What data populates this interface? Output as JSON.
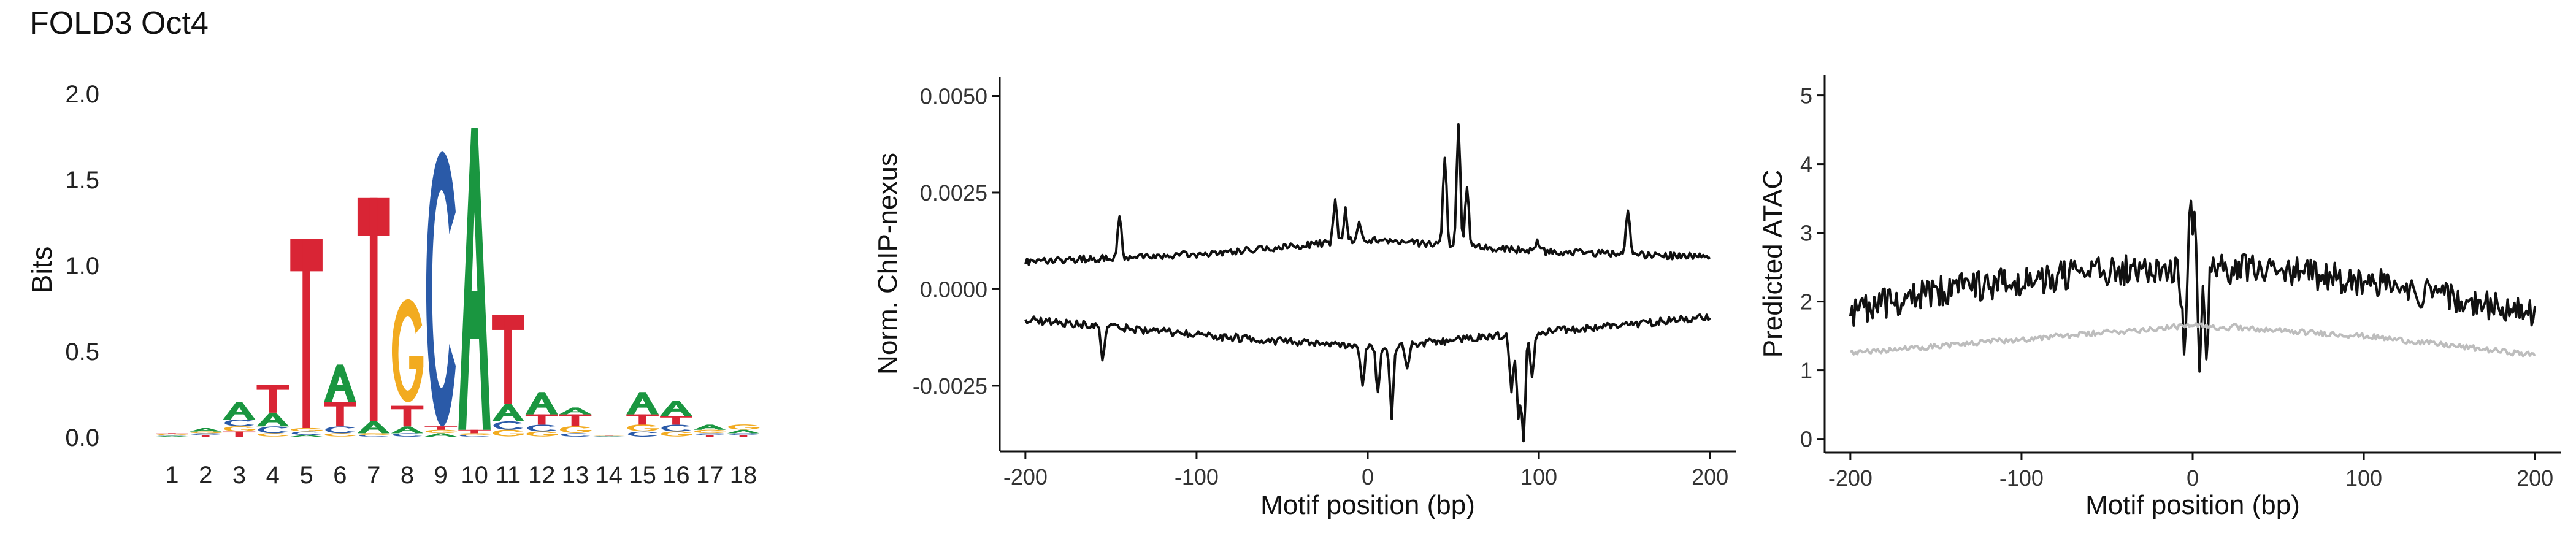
{
  "title": "FOLD3 Oct4",
  "colors": {
    "A": "#1a9640",
    "C": "#2a5aa8",
    "G": "#f2ab20",
    "T": "#d92535",
    "trace": "#111111",
    "control": "#bdbdbd"
  },
  "chart_data": [
    {
      "type": "sequence-logo",
      "ylabel": "Bits",
      "ylim": [
        0,
        2.0
      ],
      "yticks": [
        "0.0",
        "0.5",
        "1.0",
        "1.5",
        "2.0"
      ],
      "positions": [
        "1",
        "2",
        "3",
        "4",
        "5",
        "6",
        "7",
        "8",
        "9",
        "10",
        "11",
        "12",
        "13",
        "14",
        "15",
        "16",
        "17",
        "18"
      ],
      "stacks": [
        [
          [
            "A",
            0.005
          ],
          [
            "C",
            0.005
          ],
          [
            "G",
            0.005
          ],
          [
            "T",
            0.005
          ]
        ],
        [
          [
            "T",
            0.01
          ],
          [
            "C",
            0.01
          ],
          [
            "G",
            0.01
          ],
          [
            "A",
            0.02
          ]
        ],
        [
          [
            "T",
            0.03
          ],
          [
            "G",
            0.03
          ],
          [
            "C",
            0.04
          ],
          [
            "A",
            0.1
          ]
        ],
        [
          [
            "G",
            0.02
          ],
          [
            "C",
            0.04
          ],
          [
            "A",
            0.08
          ],
          [
            "T",
            0.16
          ]
        ],
        [
          [
            "A",
            0.01
          ],
          [
            "C",
            0.02
          ],
          [
            "G",
            0.02
          ],
          [
            "T",
            1.1
          ]
        ],
        [
          [
            "G",
            0.02
          ],
          [
            "C",
            0.04
          ],
          [
            "T",
            0.14
          ],
          [
            "A",
            0.22
          ]
        ],
        [
          [
            "C",
            0.01
          ],
          [
            "G",
            0.01
          ],
          [
            "A",
            0.07
          ],
          [
            "T",
            1.3
          ]
        ],
        [
          [
            "C",
            0.02
          ],
          [
            "A",
            0.04
          ],
          [
            "T",
            0.12
          ],
          [
            "G",
            0.6
          ]
        ],
        [
          [
            "A",
            0.02
          ],
          [
            "G",
            0.02
          ],
          [
            "T",
            0.02
          ],
          [
            "C",
            1.6
          ]
        ],
        [
          [
            "C",
            0.01
          ],
          [
            "G",
            0.01
          ],
          [
            "T",
            0.02
          ],
          [
            "A",
            1.76
          ]
        ],
        [
          [
            "G",
            0.04
          ],
          [
            "C",
            0.05
          ],
          [
            "A",
            0.1
          ],
          [
            "T",
            0.52
          ]
        ],
        [
          [
            "G",
            0.03
          ],
          [
            "C",
            0.04
          ],
          [
            "T",
            0.06
          ],
          [
            "A",
            0.13
          ]
        ],
        [
          [
            "C",
            0.02
          ],
          [
            "G",
            0.04
          ],
          [
            "T",
            0.07
          ],
          [
            "A",
            0.04
          ]
        ],
        [
          [
            "A",
            0.002
          ],
          [
            "C",
            0.002
          ],
          [
            "G",
            0.002
          ],
          [
            "T",
            0.002
          ]
        ],
        [
          [
            "C",
            0.03
          ],
          [
            "G",
            0.04
          ],
          [
            "T",
            0.06
          ],
          [
            "A",
            0.13
          ]
        ],
        [
          [
            "G",
            0.03
          ],
          [
            "C",
            0.04
          ],
          [
            "T",
            0.05
          ],
          [
            "A",
            0.09
          ]
        ],
        [
          [
            "T",
            0.01
          ],
          [
            "C",
            0.01
          ],
          [
            "G",
            0.02
          ],
          [
            "A",
            0.03
          ]
        ],
        [
          [
            "T",
            0.01
          ],
          [
            "C",
            0.01
          ],
          [
            "A",
            0.02
          ],
          [
            "G",
            0.03
          ]
        ]
      ]
    },
    {
      "type": "line",
      "xlabel": "Motif position (bp)",
      "ylabel": "Norm. ChIP-nexus",
      "xlim": [
        -215,
        215
      ],
      "ylim": [
        -0.0042,
        0.0055
      ],
      "xticks": [
        -200,
        -100,
        0,
        100,
        200
      ],
      "xtick_labels": [
        "-200",
        "-100",
        "0",
        "100",
        "200"
      ],
      "yticks": [
        -0.0025,
        0,
        0.0025,
        0.005
      ],
      "ytick_labels": [
        "-0.0025",
        "0.0000",
        "0.0025",
        "0.0050"
      ],
      "series": [
        {
          "x_start": -200,
          "x_step": 1,
          "baseline": [
            [
              -200,
              0.00072
            ],
            [
              -100,
              0.0009
            ],
            [
              0,
              0.00128
            ],
            [
              100,
              0.00098
            ],
            [
              200,
              0.00083
            ]
          ],
          "peaks": [
            [
              -145,
              0.0011
            ],
            [
              -19,
              0.0012
            ],
            [
              -13,
              0.0008
            ],
            [
              -5,
              0.0004
            ],
            [
              45,
              0.0023
            ],
            [
              53,
              0.0031
            ],
            [
              58,
              0.0015
            ],
            [
              99,
              0.0003
            ],
            [
              152,
              0.0012
            ]
          ],
          "noise": 9e-05
        },
        {
          "x_start": -200,
          "x_step": 1,
          "baseline": [
            [
              -200,
              -0.00078
            ],
            [
              -100,
              -0.00118
            ],
            [
              0,
              -0.00152
            ],
            [
              100,
              -0.00112
            ],
            [
              200,
              -0.00072
            ]
          ],
          "peaks": [
            [
              -155,
              -0.0009
            ],
            [
              -3,
              -0.0009
            ],
            [
              6,
              -0.0012
            ],
            [
              14,
              -0.0018
            ],
            [
              23,
              -0.0006
            ],
            [
              84,
              -0.0015
            ],
            [
              88,
              -0.0022
            ],
            [
              91,
              -0.0028
            ],
            [
              96,
              -0.0012
            ]
          ],
          "noise": 0.0001
        }
      ]
    },
    {
      "type": "line",
      "xlabel": "Motif position (bp)",
      "ylabel": "Predicted ATAC",
      "xlim": [
        -215,
        215
      ],
      "ylim": [
        -0.2,
        5.3
      ],
      "xticks": [
        -200,
        -100,
        0,
        100,
        200
      ],
      "xtick_labels": [
        "-200",
        "-100",
        "0",
        "100",
        "200"
      ],
      "yticks": [
        0,
        1,
        2,
        3,
        4,
        5
      ],
      "ytick_labels": [
        "0",
        "1",
        "2",
        "3",
        "4",
        "5"
      ],
      "series": [
        {
          "color": "#111111",
          "x_start": -200,
          "x_step": 1,
          "baseline": [
            [
              -200,
              1.85
            ],
            [
              -150,
              2.15
            ],
            [
              -100,
              2.3
            ],
            [
              -50,
              2.45
            ],
            [
              0,
              2.5
            ],
            [
              50,
              2.45
            ],
            [
              100,
              2.3
            ],
            [
              150,
              2.05
            ],
            [
              200,
              1.8
            ]
          ],
          "peaks": [
            [
              -2,
              1.1
            ],
            [
              -6,
              -0.6
            ],
            [
              -4,
              -1.1
            ],
            [
              4,
              -1.6
            ],
            [
              8,
              -1.2
            ],
            [
              1,
              0.6
            ]
          ],
          "noise": 0.22
        },
        {
          "color": "#bdbdbd",
          "x_start": -200,
          "x_step": 1,
          "baseline": [
            [
              -200,
              1.25
            ],
            [
              -100,
              1.45
            ],
            [
              0,
              1.65
            ],
            [
              100,
              1.5
            ],
            [
              200,
              1.22
            ]
          ],
          "peaks": [
            [
              25,
              0.1
            ]
          ],
          "noise": 0.04
        }
      ]
    }
  ]
}
